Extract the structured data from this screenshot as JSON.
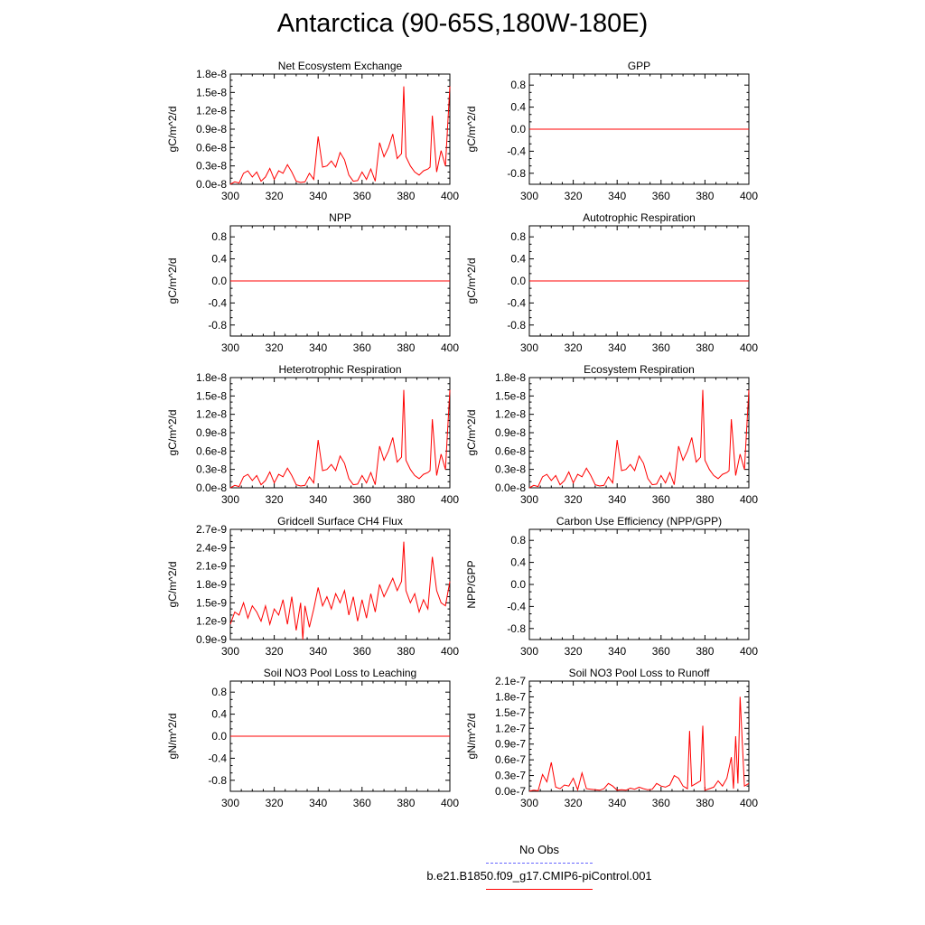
{
  "figure": {
    "title": "Antarctica (90-65S,180W-180E)"
  },
  "colors": {
    "series": "#ff0000",
    "obs": "#6666ff",
    "axis": "#000000"
  },
  "legend": {
    "obs_label": "No Obs",
    "model_label": "b.e21.B1850.f09_g17.CMIP6-piControl.001"
  },
  "chart_data": [
    {
      "type": "line",
      "title": "Net Ecosystem Exchange",
      "ylabel": "gC/m^2/d",
      "xlim": [
        300,
        400
      ],
      "ylim": [
        0,
        1.8e-08
      ],
      "xticks": [
        300,
        320,
        340,
        360,
        380,
        400
      ],
      "yticks": [
        0,
        3e-09,
        6e-09,
        9e-09,
        1.2e-08,
        1.5e-08,
        1.8e-08
      ],
      "yticklabels": [
        "0.0e-8",
        "0.3e-8",
        "0.6e-8",
        "0.9e-8",
        "1.2e-8",
        "1.5e-8",
        "1.8e-8"
      ],
      "x": [
        300,
        302,
        304,
        306,
        308,
        310,
        312,
        314,
        316,
        318,
        320,
        322,
        324,
        326,
        328,
        330,
        332,
        334,
        336,
        338,
        340,
        342,
        344,
        346,
        348,
        350,
        352,
        354,
        356,
        358,
        360,
        362,
        364,
        366,
        368,
        370,
        372,
        374,
        376,
        378,
        379,
        380,
        382,
        384,
        386,
        388,
        390,
        391,
        392,
        394,
        396,
        398,
        400
      ],
      "y": [
        5e-12,
        4e-10,
        2e-10,
        1.8e-09,
        2.2e-09,
        1.2e-09,
        2e-09,
        5e-10,
        1.2e-09,
        2.6e-09,
        8e-10,
        2.2e-09,
        1.8e-09,
        3.2e-09,
        2e-09,
        5e-10,
        3e-10,
        4e-10,
        1.8e-09,
        8e-10,
        7.8e-09,
        2.8e-09,
        3e-09,
        3.8e-09,
        2.8e-09,
        5.2e-09,
        4e-09,
        1.5e-09,
        5e-10,
        6e-10,
        2e-09,
        8e-10,
        2.5e-09,
        5e-10,
        6.8e-09,
        4.5e-09,
        6e-09,
        8.2e-09,
        4.2e-09,
        5e-09,
        1.6e-08,
        4.5e-09,
        3e-09,
        2e-09,
        1.5e-09,
        2.2e-09,
        2.5e-09,
        2.8e-09,
        1.12e-08,
        2e-09,
        5.5e-09,
        3e-09,
        1.6e-08
      ]
    },
    {
      "type": "line",
      "title": "GPP",
      "ylabel": "gC/m^2/d",
      "xlim": [
        300,
        400
      ],
      "ylim": [
        -1,
        1
      ],
      "xticks": [
        300,
        320,
        340,
        360,
        380,
        400
      ],
      "yticks": [
        -0.8,
        -0.4,
        0,
        0.4,
        0.8
      ],
      "yticklabels": [
        "-0.8",
        "-0.4",
        "0.0",
        "0.4",
        "0.8"
      ],
      "x": [
        300,
        400
      ],
      "y": [
        0,
        0
      ]
    },
    {
      "type": "line",
      "title": "NPP",
      "ylabel": "gC/m^2/d",
      "xlim": [
        300,
        400
      ],
      "ylim": [
        -1,
        1
      ],
      "xticks": [
        300,
        320,
        340,
        360,
        380,
        400
      ],
      "yticks": [
        -0.8,
        -0.4,
        0,
        0.4,
        0.8
      ],
      "yticklabels": [
        "-0.8",
        "-0.4",
        "0.0",
        "0.4",
        "0.8"
      ],
      "x": [
        300,
        400
      ],
      "y": [
        0,
        0
      ]
    },
    {
      "type": "line",
      "title": "Autotrophic Respiration",
      "ylabel": "gC/m^2/d",
      "xlim": [
        300,
        400
      ],
      "ylim": [
        -1,
        1
      ],
      "xticks": [
        300,
        320,
        340,
        360,
        380,
        400
      ],
      "yticks": [
        -0.8,
        -0.4,
        0,
        0.4,
        0.8
      ],
      "yticklabels": [
        "-0.8",
        "-0.4",
        "0.0",
        "0.4",
        "0.8"
      ],
      "x": [
        300,
        400
      ],
      "y": [
        0,
        0
      ]
    },
    {
      "type": "line",
      "title": "Heterotrophic Respiration",
      "ylabel": "gC/m^2/d",
      "xlim": [
        300,
        400
      ],
      "ylim": [
        0,
        1.8e-08
      ],
      "xticks": [
        300,
        320,
        340,
        360,
        380,
        400
      ],
      "yticks": [
        0,
        3e-09,
        6e-09,
        9e-09,
        1.2e-08,
        1.5e-08,
        1.8e-08
      ],
      "yticklabels": [
        "0.0e-8",
        "0.3e-8",
        "0.6e-8",
        "0.9e-8",
        "1.2e-8",
        "1.5e-8",
        "1.8e-8"
      ],
      "x": [
        300,
        302,
        304,
        306,
        308,
        310,
        312,
        314,
        316,
        318,
        320,
        322,
        324,
        326,
        328,
        330,
        332,
        334,
        336,
        338,
        340,
        342,
        344,
        346,
        348,
        350,
        352,
        354,
        356,
        358,
        360,
        362,
        364,
        366,
        368,
        370,
        372,
        374,
        376,
        378,
        379,
        380,
        382,
        384,
        386,
        388,
        390,
        391,
        392,
        394,
        396,
        398,
        400
      ],
      "y": [
        5e-12,
        4e-10,
        2e-10,
        1.8e-09,
        2.2e-09,
        1.2e-09,
        2e-09,
        5e-10,
        1.2e-09,
        2.6e-09,
        8e-10,
        2.2e-09,
        1.8e-09,
        3.2e-09,
        2e-09,
        5e-10,
        3e-10,
        4e-10,
        1.8e-09,
        8e-10,
        7.8e-09,
        2.8e-09,
        3e-09,
        3.8e-09,
        2.8e-09,
        5.2e-09,
        4e-09,
        1.5e-09,
        5e-10,
        6e-10,
        2e-09,
        8e-10,
        2.5e-09,
        5e-10,
        6.8e-09,
        4.5e-09,
        6e-09,
        8.2e-09,
        4.2e-09,
        5e-09,
        1.6e-08,
        4.5e-09,
        3e-09,
        2e-09,
        1.5e-09,
        2.2e-09,
        2.5e-09,
        2.8e-09,
        1.12e-08,
        2e-09,
        5.5e-09,
        3e-09,
        1.6e-08
      ]
    },
    {
      "type": "line",
      "title": "Ecosystem Respiration",
      "ylabel": "gC/m^2/d",
      "xlim": [
        300,
        400
      ],
      "ylim": [
        0,
        1.8e-08
      ],
      "xticks": [
        300,
        320,
        340,
        360,
        380,
        400
      ],
      "yticks": [
        0,
        3e-09,
        6e-09,
        9e-09,
        1.2e-08,
        1.5e-08,
        1.8e-08
      ],
      "yticklabels": [
        "0.0e-8",
        "0.3e-8",
        "0.6e-8",
        "0.9e-8",
        "1.2e-8",
        "1.5e-8",
        "1.8e-8"
      ],
      "x": [
        300,
        302,
        304,
        306,
        308,
        310,
        312,
        314,
        316,
        318,
        320,
        322,
        324,
        326,
        328,
        330,
        332,
        334,
        336,
        338,
        340,
        342,
        344,
        346,
        348,
        350,
        352,
        354,
        356,
        358,
        360,
        362,
        364,
        366,
        368,
        370,
        372,
        374,
        376,
        378,
        379,
        380,
        382,
        384,
        386,
        388,
        390,
        391,
        392,
        394,
        396,
        398,
        400
      ],
      "y": [
        5e-12,
        4e-10,
        2e-10,
        1.8e-09,
        2.2e-09,
        1.2e-09,
        2e-09,
        5e-10,
        1.2e-09,
        2.6e-09,
        8e-10,
        2.2e-09,
        1.8e-09,
        3.2e-09,
        2e-09,
        5e-10,
        3e-10,
        4e-10,
        1.8e-09,
        8e-10,
        7.8e-09,
        2.8e-09,
        3e-09,
        3.8e-09,
        2.8e-09,
        5.2e-09,
        4e-09,
        1.5e-09,
        5e-10,
        6e-10,
        2e-09,
        8e-10,
        2.5e-09,
        5e-10,
        6.8e-09,
        4.5e-09,
        6e-09,
        8.2e-09,
        4.2e-09,
        5e-09,
        1.6e-08,
        4.5e-09,
        3e-09,
        2e-09,
        1.5e-09,
        2.2e-09,
        2.5e-09,
        2.8e-09,
        1.12e-08,
        2e-09,
        5.5e-09,
        3e-09,
        1.6e-08
      ]
    },
    {
      "type": "line",
      "title": "Gridcell Surface CH4 Flux",
      "ylabel": "gC/m^2/d",
      "xlim": [
        300,
        400
      ],
      "ylim": [
        9e-10,
        2.7e-09
      ],
      "xticks": [
        300,
        320,
        340,
        360,
        380,
        400
      ],
      "yticks": [
        9e-10,
        1.2e-09,
        1.5e-09,
        1.8e-09,
        2.1e-09,
        2.4e-09,
        2.7e-09
      ],
      "yticklabels": [
        "0.9e-9",
        "1.2e-9",
        "1.5e-9",
        "1.8e-9",
        "2.1e-9",
        "2.4e-9",
        "2.7e-9"
      ],
      "x": [
        300,
        302,
        304,
        306,
        308,
        310,
        312,
        314,
        316,
        318,
        320,
        322,
        324,
        326,
        328,
        330,
        332,
        333,
        334,
        336,
        338,
        340,
        342,
        344,
        346,
        348,
        350,
        352,
        354,
        356,
        358,
        360,
        362,
        364,
        366,
        368,
        370,
        372,
        374,
        376,
        378,
        379,
        380,
        382,
        384,
        386,
        388,
        390,
        392,
        394,
        396,
        398,
        400
      ],
      "y": [
        1.15e-09,
        1.35e-09,
        1.3e-09,
        1.5e-09,
        1.25e-09,
        1.45e-09,
        1.35e-09,
        1.2e-09,
        1.45e-09,
        1.15e-09,
        1.4e-09,
        1.3e-09,
        1.55e-09,
        1.15e-09,
        1.6e-09,
        1.05e-09,
        1.5e-09,
        9e-10,
        1.45e-09,
        1.1e-09,
        1.4e-09,
        1.75e-09,
        1.45e-09,
        1.6e-09,
        1.4e-09,
        1.65e-09,
        1.5e-09,
        1.7e-09,
        1.3e-09,
        1.6e-09,
        1.2e-09,
        1.55e-09,
        1.25e-09,
        1.65e-09,
        1.35e-09,
        1.8e-09,
        1.6e-09,
        1.75e-09,
        1.9e-09,
        1.7e-09,
        1.85e-09,
        2.5e-09,
        1.7e-09,
        1.5e-09,
        1.65e-09,
        1.35e-09,
        1.55e-09,
        1.4e-09,
        2.25e-09,
        1.7e-09,
        1.5e-09,
        1.45e-09,
        1.85e-09
      ]
    },
    {
      "type": "line",
      "title": "Carbon Use Efficiency (NPP/GPP)",
      "ylabel": "NPP/GPP",
      "xlim": [
        300,
        400
      ],
      "ylim": [
        -1,
        1
      ],
      "xticks": [
        300,
        320,
        340,
        360,
        380,
        400
      ],
      "yticks": [
        -0.8,
        -0.4,
        0,
        0.4,
        0.8
      ],
      "yticklabels": [
        "-0.8",
        "-0.4",
        "0.0",
        "0.4",
        "0.8"
      ],
      "x": [],
      "y": []
    },
    {
      "type": "line",
      "title": "Soil NO3 Pool Loss to Leaching",
      "ylabel": "gN/m^2/d",
      "xlim": [
        300,
        400
      ],
      "ylim": [
        -1,
        1
      ],
      "xticks": [
        300,
        320,
        340,
        360,
        380,
        400
      ],
      "yticks": [
        -0.8,
        -0.4,
        0,
        0.4,
        0.8
      ],
      "yticklabels": [
        "-0.8",
        "-0.4",
        "0.0",
        "0.4",
        "0.8"
      ],
      "x": [
        300,
        400
      ],
      "y": [
        0,
        0
      ]
    },
    {
      "type": "line",
      "title": "Soil NO3 Pool Loss to Runoff",
      "ylabel": "gN/m^2/d",
      "xlim": [
        300,
        400
      ],
      "ylim": [
        0,
        2.1e-07
      ],
      "xticks": [
        300,
        320,
        340,
        360,
        380,
        400
      ],
      "yticks": [
        0,
        3e-08,
        6e-08,
        9e-08,
        1.2e-07,
        1.5e-07,
        1.8e-07,
        2.1e-07
      ],
      "yticklabels": [
        "0.0e-7",
        "0.3e-7",
        "0.6e-7",
        "0.9e-7",
        "1.2e-7",
        "1.5e-7",
        "1.8e-7",
        "2.1e-7"
      ],
      "x": [
        300,
        302,
        304,
        306,
        308,
        310,
        312,
        314,
        316,
        318,
        320,
        322,
        324,
        326,
        328,
        330,
        332,
        334,
        336,
        338,
        340,
        342,
        344,
        346,
        348,
        350,
        352,
        354,
        356,
        358,
        360,
        362,
        364,
        366,
        368,
        370,
        372,
        373,
        374,
        376,
        378,
        379,
        380,
        382,
        384,
        386,
        388,
        390,
        392,
        393,
        394,
        395,
        396,
        398,
        400
      ],
      "y": [
        5e-10,
        2e-09,
        1e-09,
        3.2e-08,
        1.8e-08,
        5.5e-08,
        8e-09,
        5e-09,
        1.2e-08,
        1e-08,
        2.5e-08,
        3e-09,
        3.5e-08,
        5e-09,
        4e-09,
        3e-09,
        2e-09,
        5e-09,
        1.5e-08,
        1e-08,
        2e-09,
        3e-09,
        2e-09,
        6e-09,
        4e-09,
        8e-09,
        5e-09,
        3e-09,
        4e-09,
        1.5e-08,
        1e-08,
        8e-09,
        1.2e-08,
        3e-08,
        2.5e-08,
        1e-08,
        5e-09,
        1.15e-07,
        1e-08,
        1.5e-08,
        2e-08,
        1.25e-07,
        2e-09,
        5e-09,
        8e-09,
        2e-08,
        1e-08,
        2.5e-08,
        6.5e-08,
        5e-09,
        1.05e-07,
        1.5e-08,
        1.8e-07,
        1e-08,
        1.5e-08
      ]
    }
  ]
}
